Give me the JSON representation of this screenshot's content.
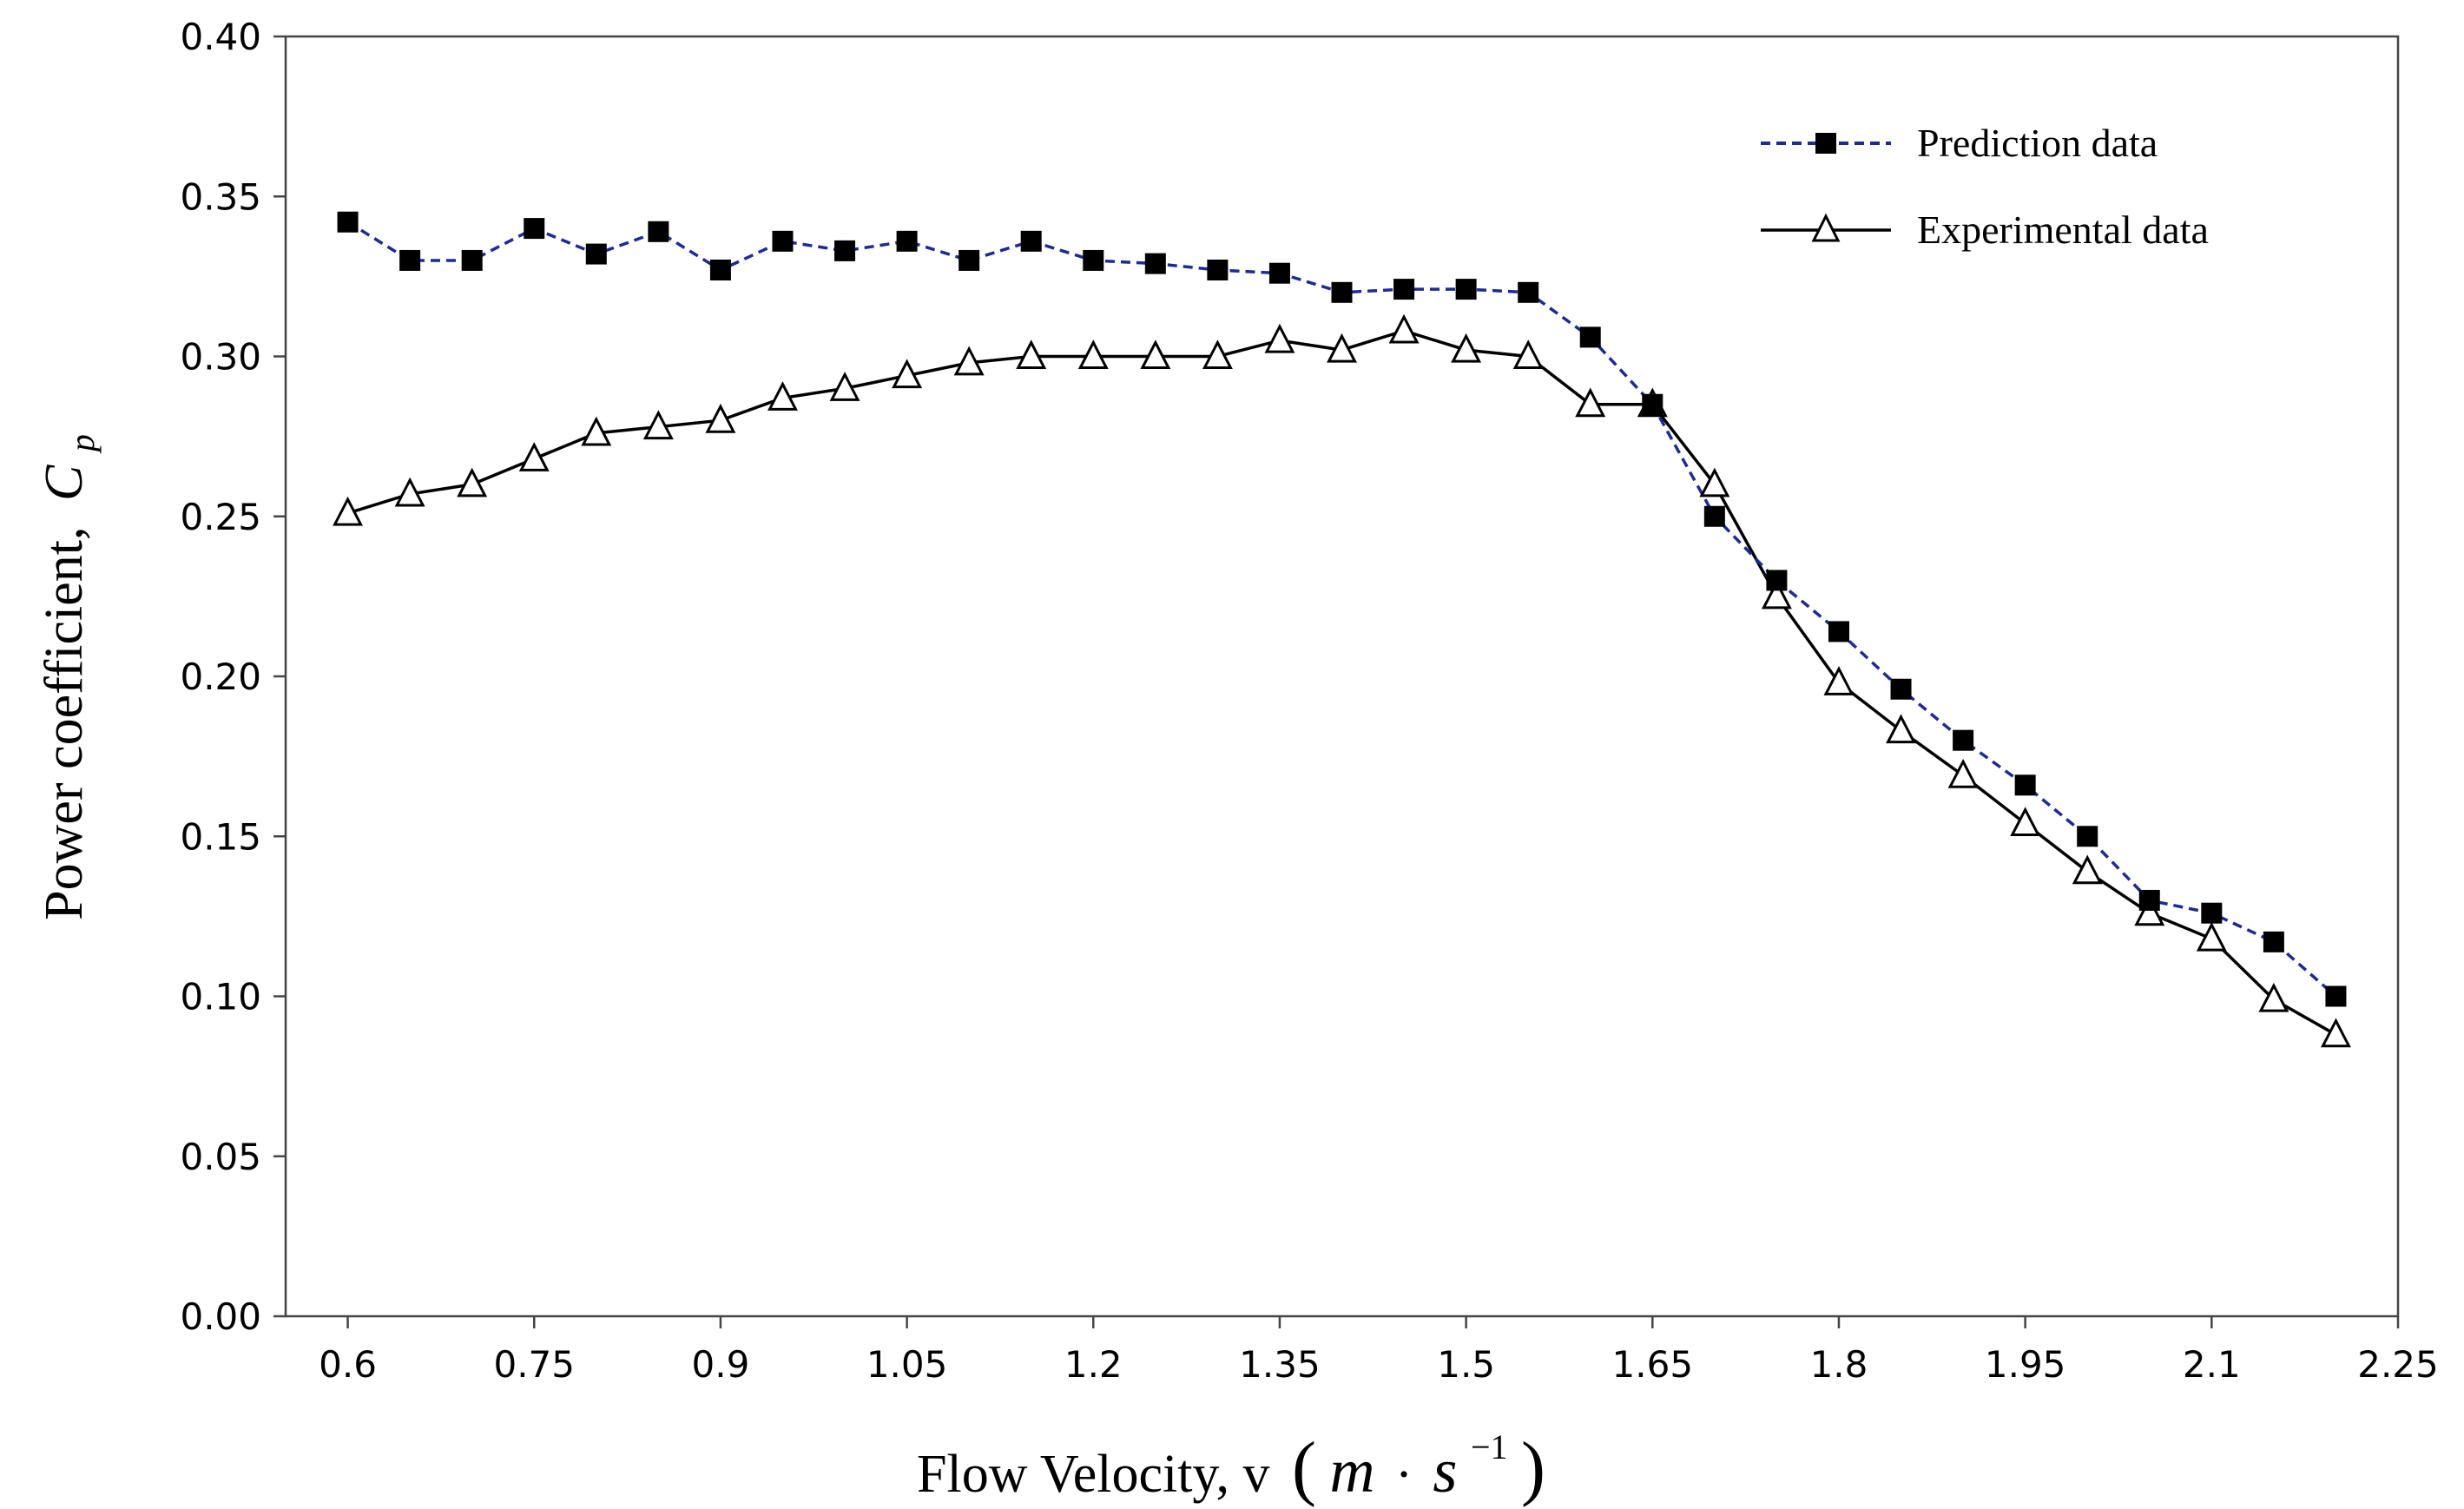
{
  "chart_data": {
    "type": "line",
    "title": "",
    "xlabel": "Flow Velocity, v",
    "xlabel_unit": {
      "m": "m",
      "dot": "·",
      "s": "s",
      "exp": "−1"
    },
    "ylabel": "Power coefficient,",
    "ylabel_symbol": {
      "base": "C",
      "sub": "p"
    },
    "xlim": [
      0.55,
      2.25
    ],
    "ylim": [
      0.0,
      0.4
    ],
    "xticks": [
      0.6,
      0.75,
      0.9,
      1.05,
      1.2,
      1.35,
      1.5,
      1.65,
      1.8,
      1.95,
      2.1,
      2.25
    ],
    "xtick_labels": [
      "0.6",
      "0.75",
      "0.9",
      "1.05",
      "1.2",
      "1.35",
      "1.5",
      "1.65",
      "1.8",
      "1.95",
      "2.1",
      "2.25"
    ],
    "yticks": [
      0.0,
      0.05,
      0.1,
      0.15,
      0.2,
      0.25,
      0.3,
      0.35,
      0.4
    ],
    "ytick_labels": [
      "0.00",
      "0.05",
      "0.10",
      "0.15",
      "0.20",
      "0.25",
      "0.30",
      "0.35",
      "0.40"
    ],
    "grid": false,
    "legend_position": "top-right",
    "x": [
      0.6,
      0.65,
      0.7,
      0.75,
      0.8,
      0.85,
      0.9,
      0.95,
      1.0,
      1.05,
      1.1,
      1.15,
      1.2,
      1.25,
      1.3,
      1.35,
      1.4,
      1.45,
      1.5,
      1.55,
      1.6,
      1.65,
      1.7,
      1.75,
      1.8,
      1.85,
      1.9,
      1.95,
      2.0,
      2.05,
      2.1,
      2.15,
      2.2
    ],
    "series": [
      {
        "name": "Prediction data",
        "color": "#1a2a9c",
        "marker": "square",
        "line": "dashed",
        "values": [
          0.342,
          0.33,
          0.33,
          0.34,
          0.332,
          0.339,
          0.327,
          0.336,
          0.333,
          0.336,
          0.33,
          0.336,
          0.33,
          0.329,
          0.327,
          0.326,
          0.32,
          0.321,
          0.321,
          0.32,
          0.306,
          0.285,
          0.25,
          0.23,
          0.214,
          0.196,
          0.18,
          0.166,
          0.15,
          0.13,
          0.126,
          0.117,
          0.1
        ]
      },
      {
        "name": "Experimental data",
        "color": "#000000",
        "marker": "triangle",
        "line": "solid",
        "values": [
          0.251,
          0.257,
          0.26,
          0.268,
          0.276,
          0.278,
          0.28,
          0.287,
          0.29,
          0.294,
          0.298,
          0.3,
          0.3,
          0.3,
          0.3,
          0.305,
          0.302,
          0.308,
          0.302,
          0.3,
          0.285,
          0.285,
          0.26,
          0.225,
          0.198,
          0.183,
          0.169,
          0.154,
          0.139,
          0.126,
          0.118,
          0.099,
          0.088
        ]
      }
    ]
  }
}
